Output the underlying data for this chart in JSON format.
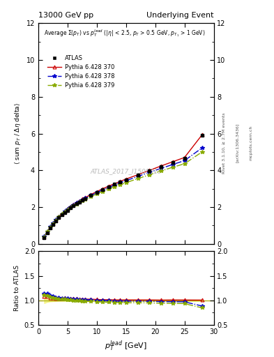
{
  "title_left": "13000 GeV pp",
  "title_right": "Underlying Event",
  "watermark": "ATLAS_2017_I1509919",
  "rivet_text": "Rivet 3.1.10, ≥ 2.7M events",
  "arxiv_text": "[arXiv:1306.3436]",
  "mcplots_text": "mcplots.cern.ch",
  "legend_entries": [
    "ATLAS",
    "Pythia 6.428 370",
    "Pythia 6.428 378",
    "Pythia 6.428 379"
  ],
  "x_data": [
    1.0,
    1.5,
    2.0,
    2.5,
    3.0,
    3.5,
    4.0,
    4.5,
    5.0,
    5.5,
    6.0,
    6.5,
    7.0,
    7.5,
    8.0,
    9.0,
    10.0,
    11.0,
    12.0,
    13.0,
    14.0,
    15.0,
    17.0,
    19.0,
    21.0,
    23.0,
    25.0,
    28.0
  ],
  "atlas_y": [
    0.35,
    0.6,
    0.85,
    1.05,
    1.25,
    1.42,
    1.57,
    1.7,
    1.83,
    1.95,
    2.07,
    2.18,
    2.28,
    2.37,
    2.46,
    2.63,
    2.8,
    2.96,
    3.1,
    3.24,
    3.37,
    3.5,
    3.73,
    3.97,
    4.22,
    4.44,
    4.67,
    5.9
  ],
  "atlas_err": [
    0.02,
    0.02,
    0.02,
    0.02,
    0.02,
    0.02,
    0.02,
    0.02,
    0.02,
    0.02,
    0.02,
    0.02,
    0.02,
    0.02,
    0.02,
    0.03,
    0.03,
    0.03,
    0.04,
    0.04,
    0.04,
    0.05,
    0.05,
    0.06,
    0.06,
    0.07,
    0.07,
    0.08
  ],
  "p370_y": [
    0.38,
    0.65,
    0.9,
    1.1,
    1.3,
    1.48,
    1.64,
    1.78,
    1.91,
    2.03,
    2.14,
    2.25,
    2.35,
    2.44,
    2.52,
    2.69,
    2.85,
    3.0,
    3.14,
    3.27,
    3.4,
    3.53,
    3.76,
    4.0,
    4.24,
    4.47,
    4.7,
    5.93
  ],
  "p378_y": [
    0.4,
    0.68,
    0.93,
    1.13,
    1.32,
    1.49,
    1.64,
    1.77,
    1.9,
    2.01,
    2.12,
    2.22,
    2.31,
    2.4,
    2.48,
    2.64,
    2.79,
    2.93,
    3.07,
    3.19,
    3.32,
    3.44,
    3.67,
    3.89,
    4.11,
    4.32,
    4.53,
    5.22
  ],
  "p379_y": [
    0.39,
    0.66,
    0.91,
    1.11,
    1.3,
    1.46,
    1.61,
    1.74,
    1.86,
    1.97,
    2.07,
    2.17,
    2.26,
    2.34,
    2.42,
    2.57,
    2.72,
    2.85,
    2.98,
    3.1,
    3.22,
    3.33,
    3.55,
    3.76,
    3.97,
    4.17,
    4.36,
    5.0
  ],
  "colors": {
    "atlas": "#000000",
    "p370": "#cc0000",
    "p378": "#0000cc",
    "p379": "#88aa00"
  },
  "ylim_main": [
    0,
    12
  ],
  "ylim_ratio": [
    0.5,
    2.0
  ],
  "xlim": [
    0,
    30
  ],
  "yticks_main": [
    0,
    2,
    4,
    6,
    8,
    10,
    12
  ],
  "yticks_ratio": [
    0.5,
    1.0,
    1.5,
    2.0
  ],
  "xticks": [
    0,
    5,
    10,
    15,
    20,
    25,
    30
  ],
  "background_color": "#ffffff"
}
